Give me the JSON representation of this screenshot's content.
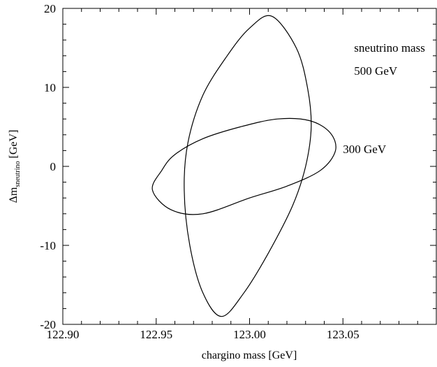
{
  "chart_data": {
    "type": "line",
    "title": "",
    "xlabel": "chargino mass [GeV]",
    "ylabel": {
      "main": "Δm",
      "subscript": "sneutrino",
      "unit": "[GeV]"
    },
    "xlim": [
      122.9,
      123.1
    ],
    "ylim": [
      -20,
      20
    ],
    "x_ticks": [
      {
        "value": 122.9,
        "label": "122.90"
      },
      {
        "value": 122.95,
        "label": "122.95"
      },
      {
        "value": 123.0,
        "label": "123.00"
      },
      {
        "value": 123.05,
        "label": "123.05"
      }
    ],
    "y_ticks": [
      {
        "value": 20,
        "label": "20"
      },
      {
        "value": 10,
        "label": "10"
      },
      {
        "value": 0,
        "label": "0"
      },
      {
        "value": -10,
        "label": "-10"
      },
      {
        "value": -20,
        "label": "-20"
      }
    ],
    "grid": false,
    "series": [
      {
        "name": "500 GeV",
        "x": [
          123.012,
          123.025,
          123.031,
          123.033,
          123.03,
          123.023,
          123.01,
          122.997,
          122.985,
          122.975,
          122.968,
          122.965,
          122.967,
          122.975,
          122.988,
          123.0,
          123.012
        ],
        "y": [
          19.0,
          15.0,
          10.0,
          5.0,
          0.0,
          -5.0,
          -11.0,
          -16.0,
          -19.0,
          -16.0,
          -10.0,
          -3.0,
          3.0,
          9.0,
          14.0,
          17.5,
          19.0
        ]
      },
      {
        "name": "300 GeV",
        "x": [
          122.96,
          122.975,
          122.995,
          123.015,
          123.032,
          123.043,
          123.046,
          123.038,
          123.02,
          123.0,
          122.975,
          122.958,
          122.948,
          122.953,
          122.96
        ],
        "y": [
          1.5,
          3.5,
          5.0,
          6.0,
          5.8,
          4.3,
          2.0,
          -0.5,
          -2.5,
          -4.0,
          -6.0,
          -5.5,
          -3.0,
          -0.5,
          1.5
        ]
      }
    ],
    "annotations": [
      {
        "text": "sneutrino mass",
        "x": 123.056,
        "y": 14.5
      },
      {
        "text": "500 GeV",
        "x": 123.056,
        "y": 11.6
      },
      {
        "text": "300 GeV",
        "x": 123.05,
        "y": 1.7
      }
    ]
  }
}
